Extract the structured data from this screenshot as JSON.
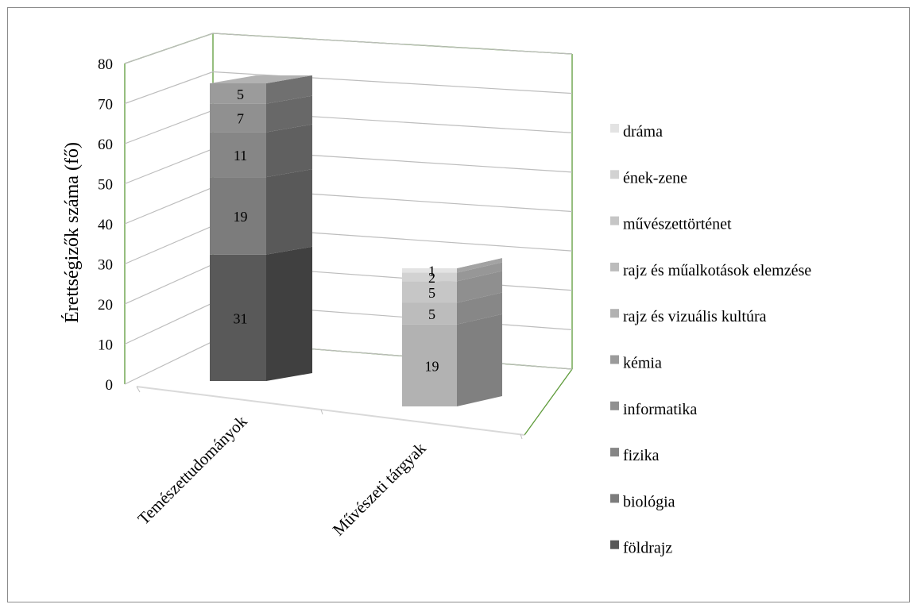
{
  "chart_data": {
    "type": "bar",
    "subtype": "3d-stacked-column",
    "ylabel": "Érettségizők száma (fő)",
    "ylim": [
      0,
      80
    ],
    "yticks": [
      "0",
      "10",
      "20",
      "30",
      "40",
      "50",
      "60",
      "70",
      "80"
    ],
    "grid": true,
    "legend_position": "right",
    "categories": [
      "Temészettudományok",
      "Művészeti tárgyak"
    ],
    "series": [
      {
        "name": "földrajz",
        "values": [
          31,
          null
        ],
        "color": "#595959"
      },
      {
        "name": "biológia",
        "values": [
          19,
          null
        ],
        "color": "#7c7c7c"
      },
      {
        "name": "fizika",
        "values": [
          11,
          null
        ],
        "color": "#868686"
      },
      {
        "name": "informatika",
        "values": [
          7,
          null
        ],
        "color": "#909090"
      },
      {
        "name": "kémia",
        "values": [
          5,
          null
        ],
        "color": "#9b9b9b"
      },
      {
        "name": "rajz és vizuális kultúra",
        "values": [
          null,
          19
        ],
        "color": "#b2b2b2"
      },
      {
        "name": "rajz és műalkotások elemzése",
        "values": [
          null,
          5
        ],
        "color": "#bcbcbc"
      },
      {
        "name": "művészettörténet",
        "values": [
          null,
          5
        ],
        "color": "#c6c6c6"
      },
      {
        "name": "ének-zene",
        "values": [
          null,
          2
        ],
        "color": "#d2d2d2"
      },
      {
        "name": "dráma",
        "values": [
          null,
          1
        ],
        "color": "#e3e3e3"
      }
    ]
  }
}
